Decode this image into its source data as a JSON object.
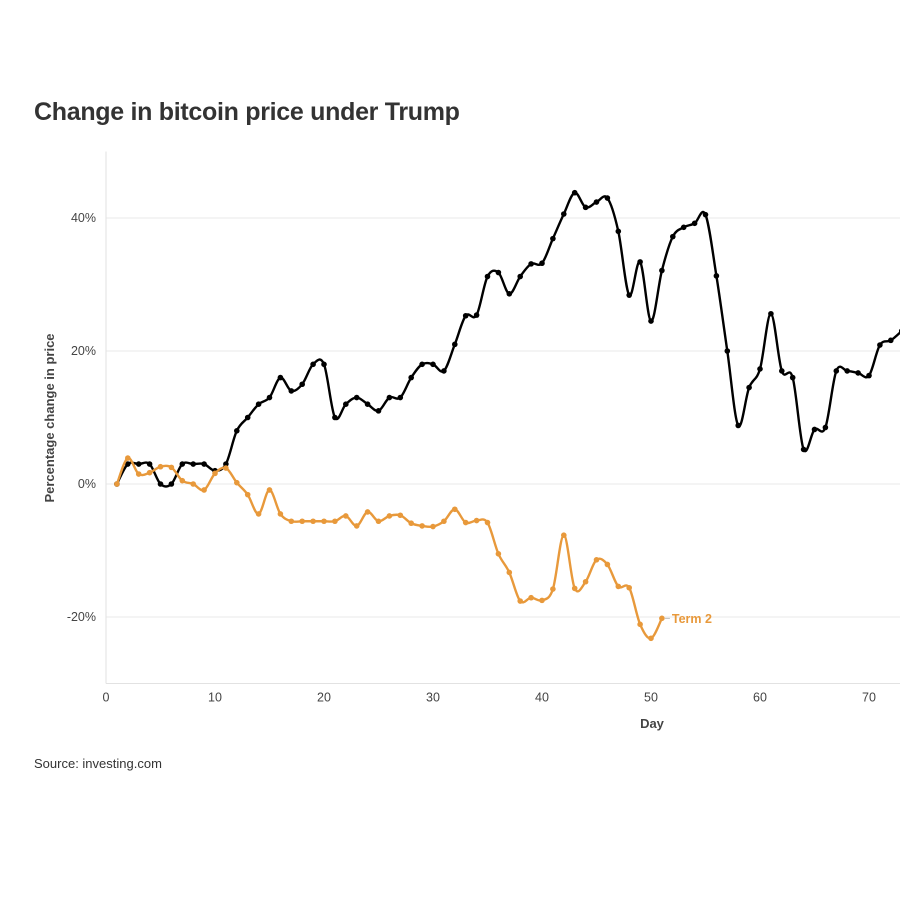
{
  "title": "Change in bitcoin price under Trump",
  "source": "Source: investing.com",
  "chart_data": {
    "type": "line",
    "title": "Change in bitcoin price under Trump",
    "xlabel": "Day",
    "ylabel": "Percentage change in price",
    "xlim": [
      0,
      73
    ],
    "ylim": [
      -30,
      50
    ],
    "x_ticks": [
      0,
      10,
      20,
      30,
      40,
      50,
      60,
      70
    ],
    "y_ticks": [
      -20,
      0,
      20,
      40
    ],
    "y_tick_labels": [
      "-20%",
      "0%",
      "20%",
      "40%"
    ],
    "grid": "horizontal",
    "series": [
      {
        "color": "#000000",
        "x": [
          1,
          2,
          3,
          4,
          5,
          6,
          7,
          8,
          9,
          10,
          11,
          12,
          13,
          14,
          15,
          16,
          17,
          18,
          19,
          20,
          21,
          22,
          23,
          24,
          25,
          26,
          27,
          28,
          29,
          30,
          31,
          32,
          33,
          34,
          35,
          36,
          37,
          38,
          39,
          40,
          41,
          42,
          43,
          44,
          45,
          46,
          47,
          48,
          49,
          50,
          51,
          52,
          53,
          54,
          55,
          56,
          57,
          58,
          59,
          60,
          61,
          62,
          63,
          64,
          65,
          66,
          67,
          68,
          69,
          70,
          71,
          72,
          73
        ],
        "values": [
          0,
          3,
          3,
          3,
          0,
          0,
          3,
          3,
          3,
          2,
          3,
          8,
          10,
          12,
          13,
          16,
          14,
          15,
          18,
          18,
          10,
          12,
          13,
          12,
          11,
          13,
          13,
          16,
          18,
          18,
          17,
          21,
          25.3,
          25.4,
          31.2,
          31.8,
          28.6,
          31.2,
          33.1,
          33.2,
          36.9,
          40.6,
          43.8,
          41.6,
          42.4,
          43,
          38,
          28.4,
          33.4,
          24.5,
          32.1,
          37.2,
          38.6,
          39.2,
          40.5,
          31.3,
          20,
          8.8,
          14.5,
          17.3,
          25.6,
          17,
          16,
          5.2,
          8.2,
          8.5,
          17,
          17,
          16.7,
          16.3,
          20.9,
          21.6,
          23
        ]
      },
      {
        "name": "Term 2",
        "color": "#e8993b",
        "x": [
          1,
          2,
          3,
          4,
          5,
          6,
          7,
          8,
          9,
          10,
          11,
          12,
          13,
          14,
          15,
          16,
          17,
          18,
          19,
          20,
          21,
          22,
          23,
          24,
          25,
          26,
          27,
          28,
          29,
          30,
          31,
          32,
          33,
          34,
          35,
          36,
          37,
          38,
          39,
          40,
          41,
          42,
          43,
          44,
          45,
          46,
          47,
          48,
          49,
          50,
          51
        ],
        "values": [
          0,
          3.9,
          1.5,
          1.7,
          2.6,
          2.5,
          0.5,
          0,
          -0.9,
          1.6,
          2.4,
          0.2,
          -1.6,
          -4.5,
          -0.9,
          -4.5,
          -5.6,
          -5.6,
          -5.6,
          -5.6,
          -5.6,
          -4.8,
          -6.3,
          -4.2,
          -5.6,
          -4.8,
          -4.7,
          -5.9,
          -6.3,
          -6.4,
          -5.6,
          -3.8,
          -5.8,
          -5.5,
          -5.8,
          -10.5,
          -13.3,
          -17.6,
          -17.1,
          -17.5,
          -15.8,
          -7.7,
          -15.7,
          -14.7,
          -11.4,
          -12.1,
          -15.4,
          -15.6,
          -21.1,
          -23.2,
          -20.2
        ]
      }
    ]
  }
}
